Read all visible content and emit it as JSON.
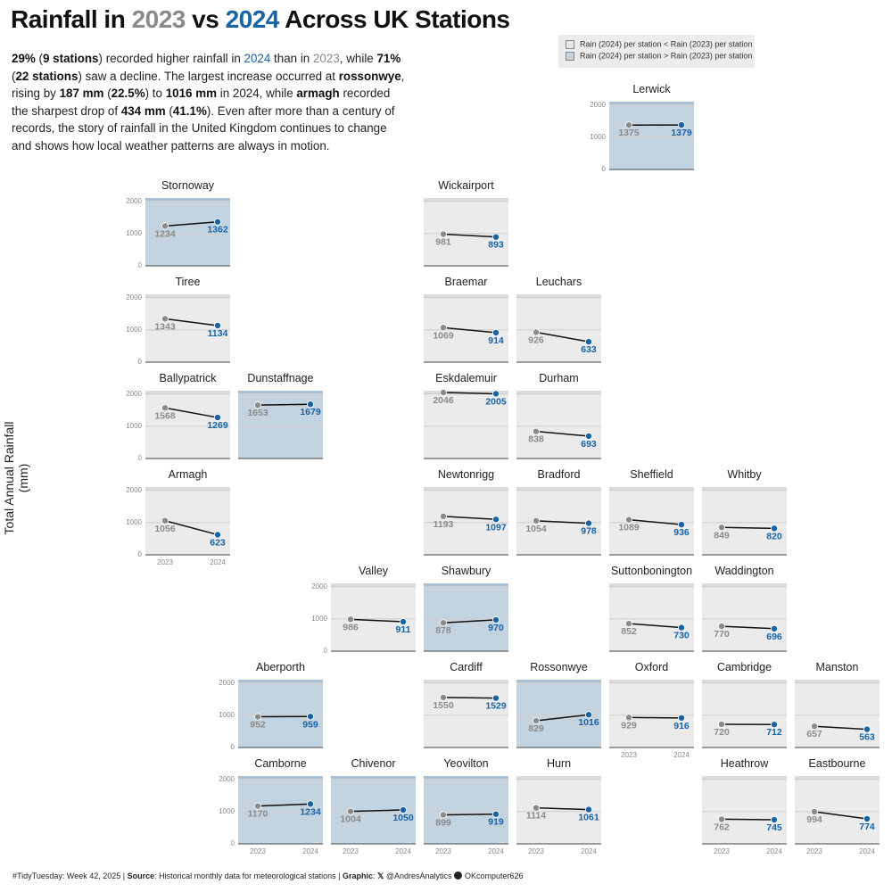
{
  "header": {
    "title_prefix": "Rainfall in ",
    "title_y1": "2023",
    "title_vs": " vs ",
    "title_y2": "2024",
    "title_suffix": " Across UK Stations"
  },
  "subtitle": {
    "p1": "29%",
    "p2": " (",
    "p3": "9 stations",
    "p4": ") recorded higher rainfall in ",
    "p5": "2024",
    "p6": " than in ",
    "p7": "2023",
    "p8": ", while ",
    "p9": "71%",
    "p10": " (",
    "p11": "22 stations",
    "p12": ") saw a decline. The largest increase occurred at ",
    "p13": "rossonwye",
    "p14": ", rising by ",
    "p15": "187 mm",
    "p16": " (",
    "p17": "22.5%",
    "p18": ") to ",
    "p19": "1016 mm",
    "p20": " in 2024, while ",
    "p21": "armagh",
    "p22": " recorded the sharpest drop of ",
    "p23": "434 mm",
    "p24": " (",
    "p25": "41.1%",
    "p26": "). Even after more than a century of records, the story of rainfall in the United Kingdom continues to change and shows how local weather patterns are always in motion."
  },
  "legend": {
    "decrease_label": "Rain (2024) per station < Rain (2023) per station",
    "increase_label": "Rain (2024) per station > Rain (2023) per station",
    "decrease_color": "#e8e8e8",
    "increase_color": "#c3d3e0"
  },
  "caption": {
    "tag": "#TidyTuesday: Week 42, 2025 | ",
    "source_label": "Source",
    "source_text": ": Historical monthly data for meteorological stations | ",
    "graphic_label": "Graphic",
    "graphic_sep": ": ",
    "x_handle": "@AndresAnalytics",
    "gh_handle": "OKcomputer626"
  },
  "colors": {
    "y2023": "#8a8a8a",
    "y2024": "#1663a6",
    "increase_bg": "#c3d3e0",
    "decrease_bg": "#ebebeb"
  },
  "chart_data": {
    "type": "line",
    "ylabel": "Total Annual Rainfall (mm)",
    "x": [
      "2023",
      "2024"
    ],
    "ylim": [
      0,
      2000
    ],
    "yticks": [
      0,
      1000,
      2000
    ],
    "grid": true,
    "legend_position": "top-right",
    "stations": [
      {
        "name": "Lerwick",
        "col": 6,
        "row": 0,
        "y2023": 1375,
        "y2024": 1379,
        "yticks_shown": true,
        "xticks_shown": false
      },
      {
        "name": "Stornoway",
        "col": 1,
        "row": 1,
        "y2023": 1234,
        "y2024": 1362,
        "yticks_shown": true,
        "xticks_shown": false
      },
      {
        "name": "Wickairport",
        "col": 4,
        "row": 1,
        "y2023": 981,
        "y2024": 893,
        "yticks_shown": false,
        "xticks_shown": false
      },
      {
        "name": "Tiree",
        "col": 1,
        "row": 2,
        "y2023": 1343,
        "y2024": 1134,
        "yticks_shown": true,
        "xticks_shown": false
      },
      {
        "name": "Braemar",
        "col": 4,
        "row": 2,
        "y2023": 1069,
        "y2024": 914,
        "yticks_shown": false,
        "xticks_shown": false
      },
      {
        "name": "Leuchars",
        "col": 5,
        "row": 2,
        "y2023": 926,
        "y2024": 633,
        "yticks_shown": false,
        "xticks_shown": false
      },
      {
        "name": "Ballypatrick",
        "col": 1,
        "row": 3,
        "y2023": 1568,
        "y2024": 1269,
        "yticks_shown": true,
        "xticks_shown": false
      },
      {
        "name": "Dunstaffnage",
        "col": 2,
        "row": 3,
        "y2023": 1653,
        "y2024": 1679,
        "yticks_shown": false,
        "xticks_shown": false
      },
      {
        "name": "Eskdalemuir",
        "col": 4,
        "row": 3,
        "y2023": 2046,
        "y2024": 2005,
        "yticks_shown": false,
        "xticks_shown": false
      },
      {
        "name": "Durham",
        "col": 5,
        "row": 3,
        "y2023": 838,
        "y2024": 693,
        "yticks_shown": false,
        "xticks_shown": false
      },
      {
        "name": "Armagh",
        "col": 1,
        "row": 4,
        "y2023": 1056,
        "y2024": 623,
        "yticks_shown": true,
        "xticks_shown": true
      },
      {
        "name": "Newtonrigg",
        "col": 4,
        "row": 4,
        "y2023": 1193,
        "y2024": 1097,
        "yticks_shown": false,
        "xticks_shown": false
      },
      {
        "name": "Bradford",
        "col": 5,
        "row": 4,
        "y2023": 1054,
        "y2024": 978,
        "yticks_shown": false,
        "xticks_shown": false
      },
      {
        "name": "Sheffield",
        "col": 6,
        "row": 4,
        "y2023": 1089,
        "y2024": 936,
        "yticks_shown": false,
        "xticks_shown": false
      },
      {
        "name": "Whitby",
        "col": 7,
        "row": 4,
        "y2023": 849,
        "y2024": 820,
        "yticks_shown": false,
        "xticks_shown": false
      },
      {
        "name": "Valley",
        "col": 3,
        "row": 5,
        "y2023": 986,
        "y2024": 911,
        "yticks_shown": true,
        "xticks_shown": false
      },
      {
        "name": "Shawbury",
        "col": 4,
        "row": 5,
        "y2023": 878,
        "y2024": 970,
        "yticks_shown": false,
        "xticks_shown": false
      },
      {
        "name": "Suttonbonington",
        "col": 6,
        "row": 5,
        "y2023": 852,
        "y2024": 730,
        "yticks_shown": false,
        "xticks_shown": false
      },
      {
        "name": "Waddington",
        "col": 7,
        "row": 5,
        "y2023": 770,
        "y2024": 696,
        "yticks_shown": false,
        "xticks_shown": false
      },
      {
        "name": "Aberporth",
        "col": 2,
        "row": 6,
        "y2023": 952,
        "y2024": 959,
        "yticks_shown": true,
        "xticks_shown": false
      },
      {
        "name": "Cardiff",
        "col": 4,
        "row": 6,
        "y2023": 1550,
        "y2024": 1529,
        "yticks_shown": false,
        "xticks_shown": false
      },
      {
        "name": "Rossonwye",
        "col": 5,
        "row": 6,
        "y2023": 829,
        "y2024": 1016,
        "yticks_shown": false,
        "xticks_shown": false
      },
      {
        "name": "Oxford",
        "col": 6,
        "row": 6,
        "y2023": 929,
        "y2024": 916,
        "yticks_shown": false,
        "xticks_shown": true
      },
      {
        "name": "Cambridge",
        "col": 7,
        "row": 6,
        "y2023": 720,
        "y2024": 712,
        "yticks_shown": false,
        "xticks_shown": false
      },
      {
        "name": "Manston",
        "col": 8,
        "row": 6,
        "y2023": 657,
        "y2024": 563,
        "yticks_shown": false,
        "xticks_shown": false
      },
      {
        "name": "Camborne",
        "col": 2,
        "row": 7,
        "y2023": 1170,
        "y2024": 1234,
        "yticks_shown": true,
        "xticks_shown": true
      },
      {
        "name": "Chivenor",
        "col": 3,
        "row": 7,
        "y2023": 1004,
        "y2024": 1050,
        "yticks_shown": false,
        "xticks_shown": true
      },
      {
        "name": "Yeovilton",
        "col": 4,
        "row": 7,
        "y2023": 899,
        "y2024": 919,
        "yticks_shown": false,
        "xticks_shown": true
      },
      {
        "name": "Hurn",
        "col": 5,
        "row": 7,
        "y2023": 1114,
        "y2024": 1061,
        "yticks_shown": false,
        "xticks_shown": true
      },
      {
        "name": "Heathrow",
        "col": 7,
        "row": 7,
        "y2023": 762,
        "y2024": 745,
        "yticks_shown": false,
        "xticks_shown": true
      },
      {
        "name": "Eastbourne",
        "col": 8,
        "row": 7,
        "y2023": 994,
        "y2024": 774,
        "yticks_shown": false,
        "xticks_shown": true
      }
    ]
  }
}
